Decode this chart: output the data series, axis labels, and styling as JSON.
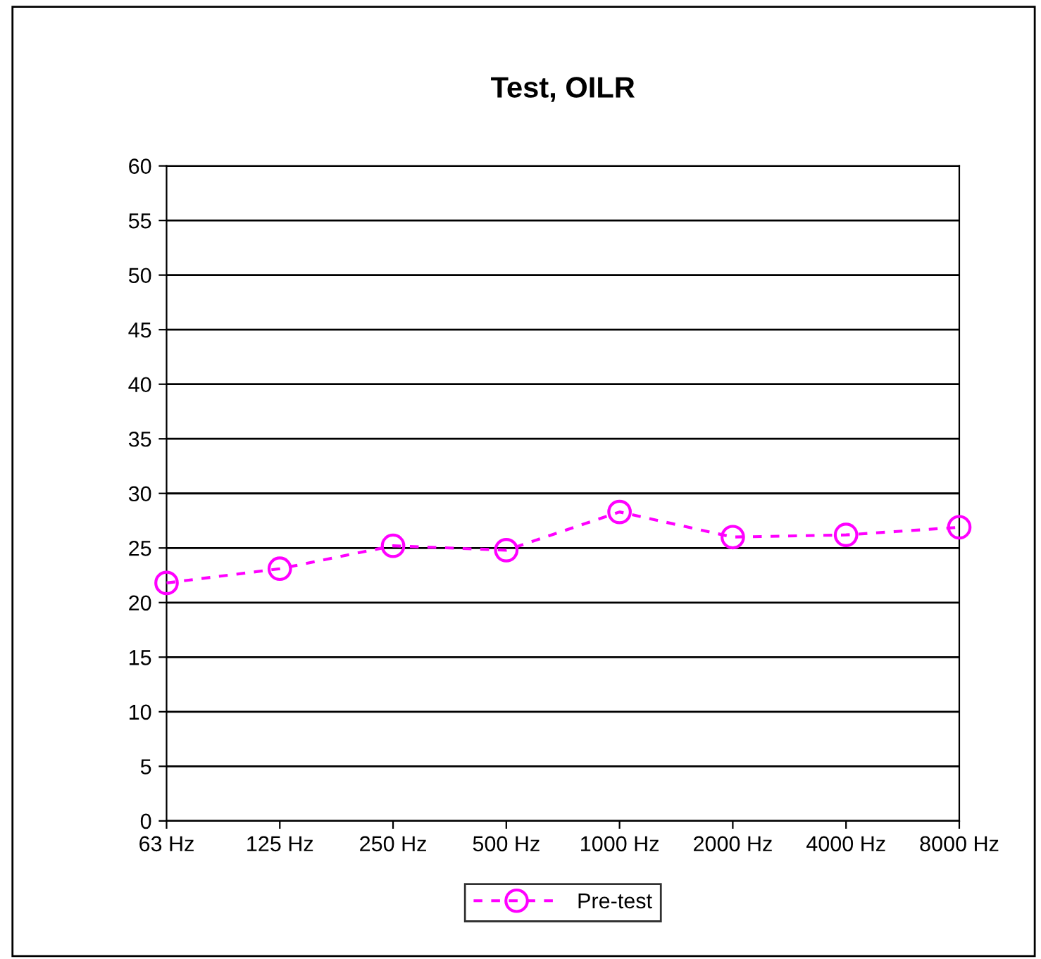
{
  "chart_data": {
    "type": "line",
    "title": "Test, OILR",
    "categories": [
      "63 Hz",
      "125 Hz",
      "250 Hz",
      "500 Hz",
      "1000 Hz",
      "2000 Hz",
      "4000 Hz",
      "8000 Hz"
    ],
    "series": [
      {
        "name": "Pre-test",
        "color": "#ff00ff",
        "values": [
          21.8,
          23.1,
          25.2,
          24.8,
          28.3,
          26.0,
          26.2,
          26.9
        ]
      }
    ],
    "ylim": [
      0,
      60
    ],
    "yticks": [
      0,
      5,
      10,
      15,
      20,
      25,
      30,
      35,
      40,
      45,
      50,
      55,
      60
    ],
    "grid": "y",
    "legend": "bottom",
    "marker": "circle",
    "line_style": "dashed"
  }
}
